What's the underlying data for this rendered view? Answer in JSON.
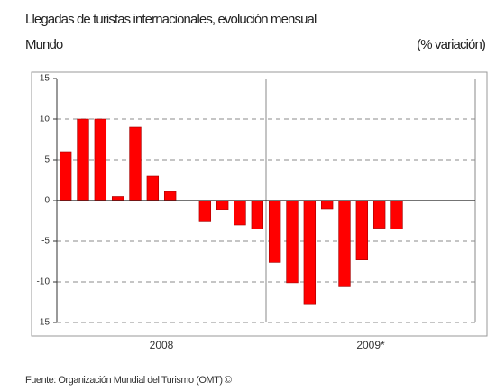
{
  "chart_data": {
    "type": "bar",
    "title": "Llegadas de turistas internacionales, evolución mensual",
    "subtitle": "Mundo",
    "y_label": "(% variación)",
    "source": "Fuente: Organización Mundial del Turismo (OMT) ©",
    "x_groups": [
      "2008",
      "2009*"
    ],
    "categories": [
      null,
      null,
      null,
      null,
      null,
      null,
      null,
      null,
      null,
      null,
      null,
      null,
      null,
      null,
      null,
      null,
      null,
      null,
      null,
      null,
      null,
      null,
      null,
      null
    ],
    "values": [
      6,
      10,
      10,
      0.5,
      9,
      3,
      1.1,
      0,
      -2.6,
      -1.1,
      -3,
      -3.5,
      -7.6,
      -10.1,
      -12.8,
      -1,
      -10.6,
      -7.3,
      -3.4,
      -3.5,
      null,
      null,
      null,
      null
    ],
    "color": "#ff0000",
    "ylim": [
      -15,
      15
    ],
    "yticks": [
      15,
      10,
      5,
      0,
      -5,
      -10,
      -15
    ],
    "grid": true
  }
}
